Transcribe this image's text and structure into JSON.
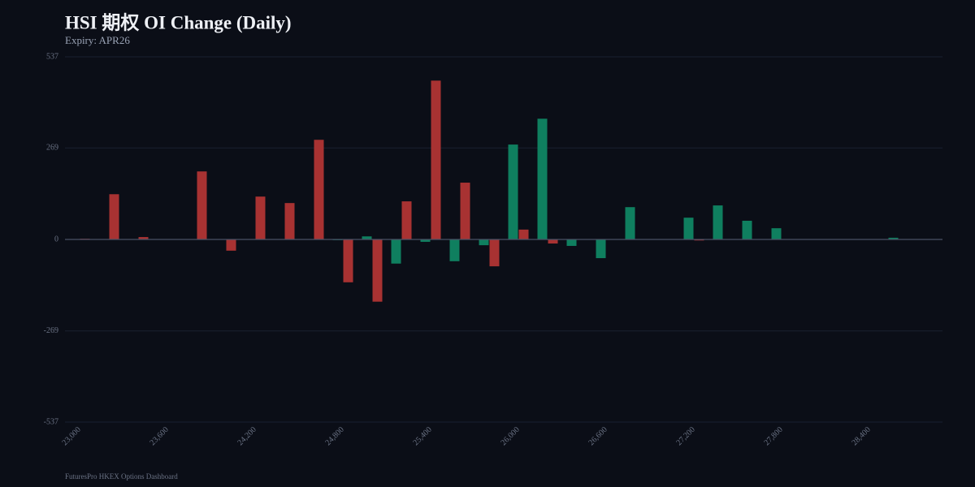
{
  "chart_data": {
    "type": "bar",
    "title": "HSI 期权 OI Change (Daily)",
    "subtitle": "Expiry: APR26",
    "footer": "FuturesPro HKEX Options Dashboard",
    "categories": [
      "23,000",
      null,
      null,
      "23,600",
      null,
      null,
      "24,200",
      null,
      null,
      "24,800",
      null,
      null,
      "25,400",
      null,
      null,
      "26,000",
      null,
      null,
      "26,600",
      null,
      null,
      "27,200",
      null,
      null,
      "27,800",
      null,
      null,
      "28,400",
      null,
      null
    ],
    "series": [
      {
        "color": "#0f7f5f",
        "values": [
          0,
          0,
          0,
          0,
          -1,
          0,
          1,
          1,
          0,
          -2,
          9,
          -71,
          -7,
          -64,
          -17,
          279,
          355,
          -19,
          -55,
          95,
          -1,
          64,
          100,
          55,
          33,
          0,
          0,
          1,
          5,
          0
        ]
      },
      {
        "color": "#a83232",
        "values": [
          2,
          133,
          7,
          0,
          200,
          -33,
          126,
          107,
          293,
          -126,
          -183,
          112,
          467,
          167,
          -79,
          29,
          -12,
          0,
          0,
          0,
          0,
          -3,
          0,
          0,
          0,
          0,
          0,
          0,
          0,
          0
        ]
      }
    ],
    "ylim": [
      -537,
      537
    ],
    "yticks": [
      -537,
      -269,
      0,
      269,
      537
    ],
    "grid": true
  }
}
